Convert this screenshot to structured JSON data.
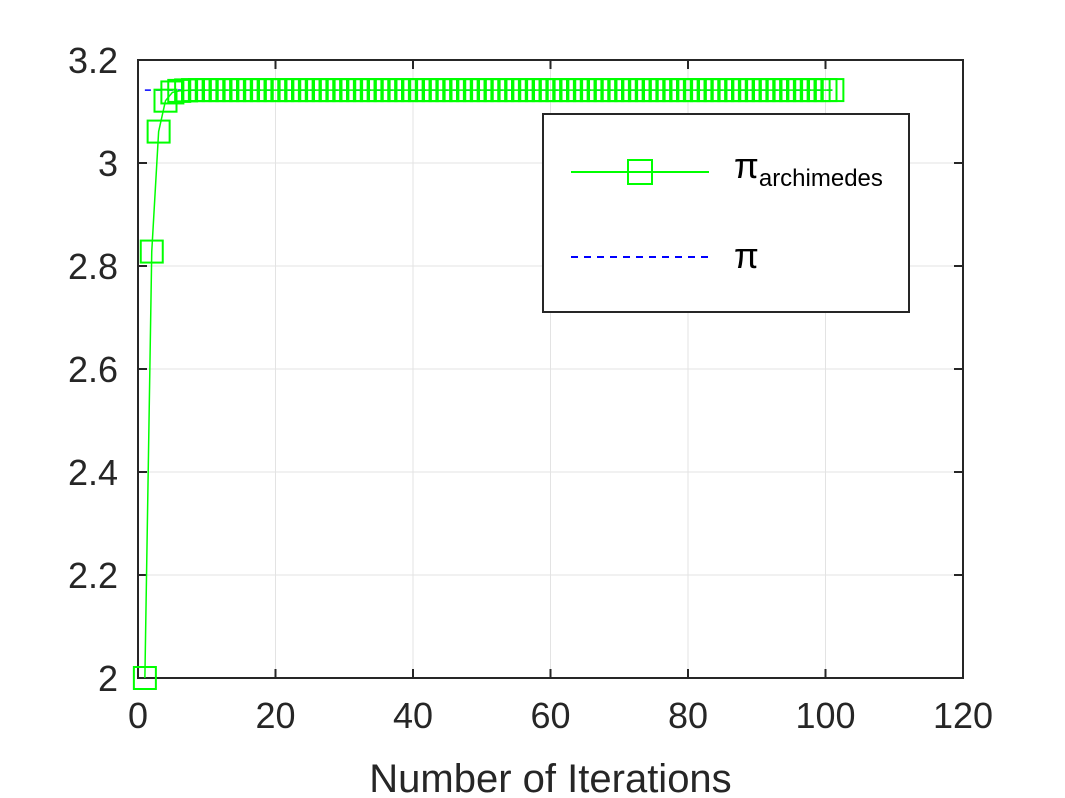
{
  "chart_data": {
    "type": "line",
    "title": "",
    "xlabel": "Number of Iterations",
    "ylabel": "",
    "xlim": [
      0,
      120
    ],
    "ylim": [
      2,
      3.2
    ],
    "xticks": [
      0,
      20,
      40,
      60,
      80,
      100,
      120
    ],
    "yticks": [
      2,
      2.2,
      2.4,
      2.6,
      2.8,
      3,
      3.2
    ],
    "xtick_labels": [
      "0",
      "20",
      "40",
      "60",
      "80",
      "100",
      "120"
    ],
    "ytick_labels": [
      "2",
      "2.2",
      "2.4",
      "2.6",
      "2.8",
      "3",
      "3.2"
    ],
    "grid": true,
    "legend_position": "top-right",
    "series": [
      {
        "name": "π_archimedes",
        "legend_main": "π",
        "legend_sub": "archimedes",
        "color": "#00ff00",
        "style": "solid",
        "marker": "square",
        "x_start": 1,
        "x_end": 101,
        "values_head": [
          2.0,
          2.828,
          3.061,
          3.121,
          3.137,
          3.14,
          3.141
        ],
        "tail_value": 3.14159
      },
      {
        "name": "π",
        "legend_main": "π",
        "color": "#0000ff",
        "style": "dashed",
        "x": [
          1,
          101
        ],
        "values": [
          3.14159,
          3.14159
        ]
      }
    ]
  }
}
